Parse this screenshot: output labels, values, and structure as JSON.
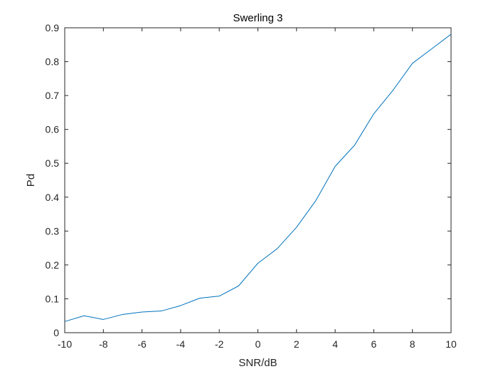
{
  "chart_data": {
    "type": "line",
    "title": "Swerling 3",
    "xlabel": "SNR/dB",
    "ylabel": "Pd",
    "xlim": [
      -10,
      10
    ],
    "ylim": [
      0,
      0.9
    ],
    "xticks": [
      -10,
      -8,
      -6,
      -4,
      -2,
      0,
      2,
      4,
      6,
      8,
      10
    ],
    "yticks": [
      0,
      0.1,
      0.2,
      0.3,
      0.4,
      0.5,
      0.6,
      0.7,
      0.8,
      0.9
    ],
    "grid": false,
    "legend": false,
    "series": [
      {
        "color": "#0072bd",
        "x": [
          -10,
          -9,
          -8,
          -7,
          -6,
          -5,
          -4,
          -3,
          -2,
          -1,
          0,
          1,
          2,
          3,
          4,
          5,
          6,
          7,
          8,
          9,
          10
        ],
        "y": [
          0.033,
          0.05,
          0.039,
          0.054,
          0.061,
          0.064,
          0.08,
          0.102,
          0.108,
          0.138,
          0.205,
          0.248,
          0.311,
          0.39,
          0.491,
          0.553,
          0.646,
          0.716,
          0.795,
          0.838,
          0.881
        ]
      }
    ]
  }
}
